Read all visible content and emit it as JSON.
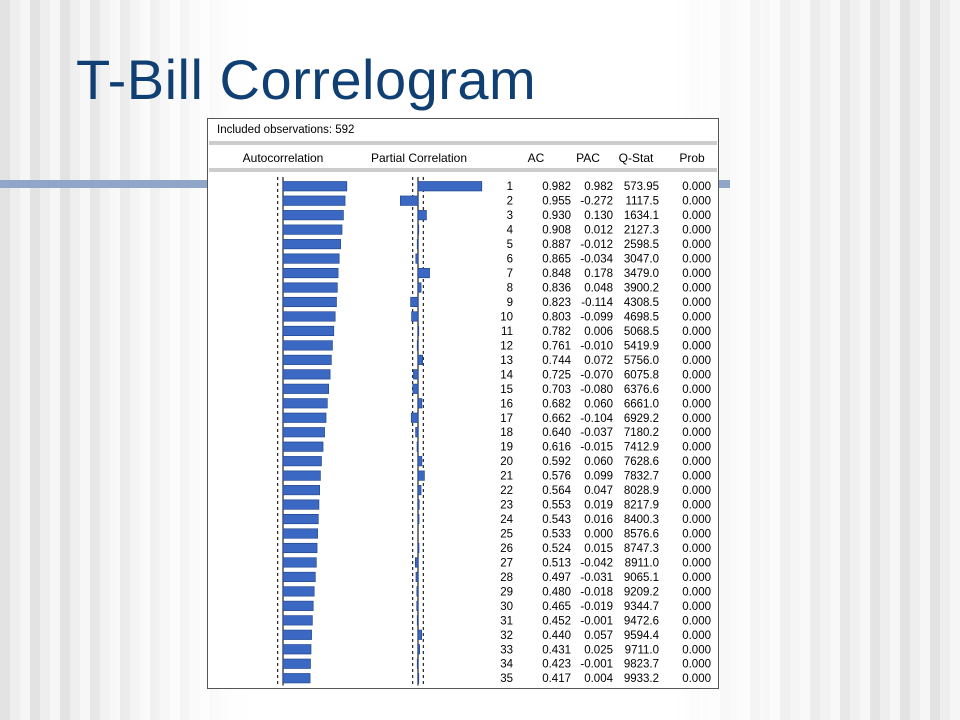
{
  "slide": {
    "title": "T-Bill Correlogram"
  },
  "colors": {
    "bar": "#3a68c2",
    "bar_edge": "#1c3f86",
    "title": "#0f3f73",
    "accent_line": "#8fa6c8"
  },
  "chart_data": {
    "type": "table",
    "header_note": "Included observations: 592",
    "columns": [
      "Autocorrelation",
      "Partial Correlation",
      "",
      "AC",
      "PAC",
      "Q-Stat",
      "Prob"
    ],
    "ac_range": [
      0,
      1
    ],
    "pac_range": [
      -1,
      1
    ],
    "rows": [
      {
        "lag": "1",
        "ac": "0.982",
        "pac": "0.982",
        "q": "573.95",
        "prob": "0.000"
      },
      {
        "lag": "2",
        "ac": "0.955",
        "pac": "-0.272",
        "q": "1117.5",
        "prob": "0.000"
      },
      {
        "lag": "3",
        "ac": "0.930",
        "pac": "0.130",
        "q": "1634.1",
        "prob": "0.000"
      },
      {
        "lag": "4",
        "ac": "0.908",
        "pac": "0.012",
        "q": "2127.3",
        "prob": "0.000"
      },
      {
        "lag": "5",
        "ac": "0.887",
        "pac": "-0.012",
        "q": "2598.5",
        "prob": "0.000"
      },
      {
        "lag": "6",
        "ac": "0.865",
        "pac": "-0.034",
        "q": "3047.0",
        "prob": "0.000"
      },
      {
        "lag": "7",
        "ac": "0.848",
        "pac": "0.178",
        "q": "3479.0",
        "prob": "0.000"
      },
      {
        "lag": "8",
        "ac": "0.836",
        "pac": "0.048",
        "q": "3900.2",
        "prob": "0.000"
      },
      {
        "lag": "9",
        "ac": "0.823",
        "pac": "-0.114",
        "q": "4308.5",
        "prob": "0.000"
      },
      {
        "lag": "10",
        "ac": "0.803",
        "pac": "-0.099",
        "q": "4698.5",
        "prob": "0.000"
      },
      {
        "lag": "11",
        "ac": "0.782",
        "pac": "0.006",
        "q": "5068.5",
        "prob": "0.000"
      },
      {
        "lag": "12",
        "ac": "0.761",
        "pac": "-0.010",
        "q": "5419.9",
        "prob": "0.000"
      },
      {
        "lag": "13",
        "ac": "0.744",
        "pac": "0.072",
        "q": "5756.0",
        "prob": "0.000"
      },
      {
        "lag": "14",
        "ac": "0.725",
        "pac": "-0.070",
        "q": "6075.8",
        "prob": "0.000"
      },
      {
        "lag": "15",
        "ac": "0.703",
        "pac": "-0.080",
        "q": "6376.6",
        "prob": "0.000"
      },
      {
        "lag": "16",
        "ac": "0.682",
        "pac": "0.060",
        "q": "6661.0",
        "prob": "0.000"
      },
      {
        "lag": "17",
        "ac": "0.662",
        "pac": "-0.104",
        "q": "6929.2",
        "prob": "0.000"
      },
      {
        "lag": "18",
        "ac": "0.640",
        "pac": "-0.037",
        "q": "7180.2",
        "prob": "0.000"
      },
      {
        "lag": "19",
        "ac": "0.616",
        "pac": "-0.015",
        "q": "7412.9",
        "prob": "0.000"
      },
      {
        "lag": "20",
        "ac": "0.592",
        "pac": "0.060",
        "q": "7628.6",
        "prob": "0.000"
      },
      {
        "lag": "21",
        "ac": "0.576",
        "pac": "0.099",
        "q": "7832.7",
        "prob": "0.000"
      },
      {
        "lag": "22",
        "ac": "0.564",
        "pac": "0.047",
        "q": "8028.9",
        "prob": "0.000"
      },
      {
        "lag": "23",
        "ac": "0.553",
        "pac": "0.019",
        "q": "8217.9",
        "prob": "0.000"
      },
      {
        "lag": "24",
        "ac": "0.543",
        "pac": "0.016",
        "q": "8400.3",
        "prob": "0.000"
      },
      {
        "lag": "25",
        "ac": "0.533",
        "pac": "0.000",
        "q": "8576.6",
        "prob": "0.000"
      },
      {
        "lag": "26",
        "ac": "0.524",
        "pac": "0.015",
        "q": "8747.3",
        "prob": "0.000"
      },
      {
        "lag": "27",
        "ac": "0.513",
        "pac": "-0.042",
        "q": "8911.0",
        "prob": "0.000"
      },
      {
        "lag": "28",
        "ac": "0.497",
        "pac": "-0.031",
        "q": "9065.1",
        "prob": "0.000"
      },
      {
        "lag": "29",
        "ac": "0.480",
        "pac": "-0.018",
        "q": "9209.2",
        "prob": "0.000"
      },
      {
        "lag": "30",
        "ac": "0.465",
        "pac": "-0.019",
        "q": "9344.7",
        "prob": "0.000"
      },
      {
        "lag": "31",
        "ac": "0.452",
        "pac": "-0.001",
        "q": "9472.6",
        "prob": "0.000"
      },
      {
        "lag": "32",
        "ac": "0.440",
        "pac": "0.057",
        "q": "9594.4",
        "prob": "0.000"
      },
      {
        "lag": "33",
        "ac": "0.431",
        "pac": "0.025",
        "q": "9711.0",
        "prob": "0.000"
      },
      {
        "lag": "34",
        "ac": "0.423",
        "pac": "-0.001",
        "q": "9823.7",
        "prob": "0.000"
      },
      {
        "lag": "35",
        "ac": "0.417",
        "pac": "0.004",
        "q": "9933.2",
        "prob": "0.000"
      }
    ]
  }
}
